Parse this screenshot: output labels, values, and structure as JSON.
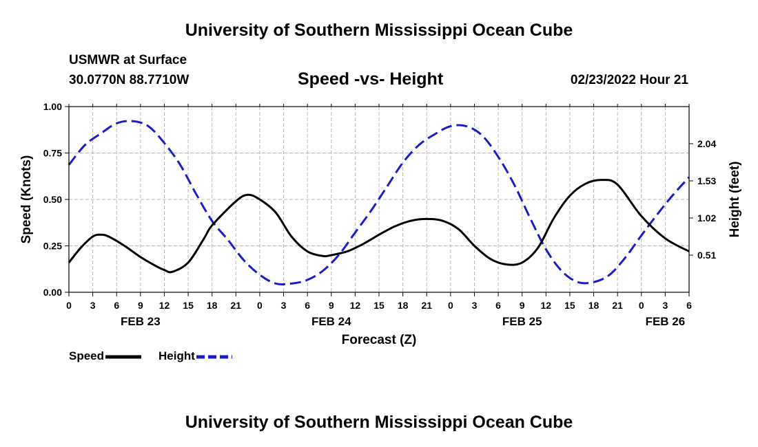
{
  "header": {
    "title": "University of Southern Mississippi Ocean Cube",
    "station": "USMWR at Surface",
    "coords": "30.0770N  88.7710W",
    "date": "02/23/2022 Hour 21"
  },
  "footer": {
    "title": "University of Southern Mississippi Ocean Cube"
  },
  "colors": {
    "speed": "#000000",
    "height": "#1a1ad0",
    "grid": "#b4b4b4"
  },
  "chart_data": {
    "type": "line",
    "title": "Speed -vs- Height",
    "xlabel": "Forecast (Z)",
    "ylabel": "Speed (Knots)",
    "y2label": "Height (feet)",
    "x_units": "hours from FEB 23 00Z",
    "xlim": [
      0,
      78
    ],
    "ylim": [
      0,
      1.0
    ],
    "y2lim": [
      0.0,
      2.55
    ],
    "x_ticks": [
      0,
      3,
      6,
      9,
      12,
      15,
      18,
      21,
      24,
      27,
      30,
      33,
      36,
      39,
      42,
      45,
      48,
      51,
      54,
      57,
      60,
      63,
      66,
      69,
      72,
      75,
      78
    ],
    "x_tick_labels": [
      "0",
      "3",
      "6",
      "9",
      "12",
      "15",
      "18",
      "21",
      "0",
      "3",
      "6",
      "9",
      "12",
      "15",
      "18",
      "21",
      "0",
      "3",
      "6",
      "9",
      "12",
      "15",
      "18",
      "21",
      "0",
      "3",
      "6"
    ],
    "y_ticks": [
      0,
      0.25,
      0.5,
      0.75,
      1.0
    ],
    "y_tick_labels": [
      "0.00",
      "0.25",
      "0.50",
      "0.75",
      "1.00"
    ],
    "y2_ticks": [
      0.51,
      1.02,
      1.53,
      2.04
    ],
    "y2_tick_labels": [
      "0.51",
      "1.02",
      "1.53",
      "2.04"
    ],
    "day_labels": [
      {
        "x": 9,
        "label": "FEB 23"
      },
      {
        "x": 33,
        "label": "FEB 24"
      },
      {
        "x": 57,
        "label": "FEB 25"
      },
      {
        "x": 75,
        "label": "FEB 26"
      }
    ],
    "grid": true,
    "legend_position": "bottom-left",
    "series": [
      {
        "name": "Speed",
        "axis": "left",
        "style": "solid",
        "x": [
          0,
          1.5,
          3,
          4,
          5,
          7,
          9,
          11,
          12,
          13,
          15,
          17,
          18,
          21,
          22.5,
          24,
          26,
          28,
          30,
          32,
          33,
          35,
          37,
          39,
          41,
          43,
          45,
          47,
          49,
          51,
          53,
          55,
          57,
          59,
          61,
          63,
          65,
          67,
          69,
          72,
          75,
          78
        ],
        "y": [
          0.16,
          0.24,
          0.3,
          0.31,
          0.3,
          0.25,
          0.19,
          0.14,
          0.12,
          0.11,
          0.16,
          0.29,
          0.36,
          0.49,
          0.525,
          0.5,
          0.43,
          0.3,
          0.22,
          0.195,
          0.2,
          0.22,
          0.26,
          0.31,
          0.355,
          0.385,
          0.395,
          0.385,
          0.34,
          0.25,
          0.18,
          0.15,
          0.16,
          0.24,
          0.4,
          0.52,
          0.585,
          0.605,
          0.58,
          0.41,
          0.29,
          0.22
        ]
      },
      {
        "name": "Height",
        "axis": "right",
        "style": "dashed",
        "x": [
          0,
          2,
          4,
          6,
          8,
          10,
          12,
          14,
          16,
          18,
          20,
          22,
          24,
          26,
          28,
          30,
          32,
          34,
          36,
          38,
          40,
          42,
          44,
          46,
          48,
          50,
          52,
          54,
          56,
          58,
          60,
          62,
          64,
          66,
          68,
          70,
          72,
          74,
          76,
          78
        ],
        "y": [
          1.75,
          2.02,
          2.18,
          2.32,
          2.35,
          2.28,
          2.05,
          1.75,
          1.35,
          0.98,
          0.72,
          0.44,
          0.24,
          0.12,
          0.12,
          0.17,
          0.3,
          0.52,
          0.82,
          1.12,
          1.45,
          1.78,
          2.02,
          2.17,
          2.28,
          2.28,
          2.15,
          1.86,
          1.48,
          1.02,
          0.59,
          0.29,
          0.14,
          0.14,
          0.24,
          0.48,
          0.78,
          1.07,
          1.34,
          1.58
        ]
      }
    ]
  }
}
